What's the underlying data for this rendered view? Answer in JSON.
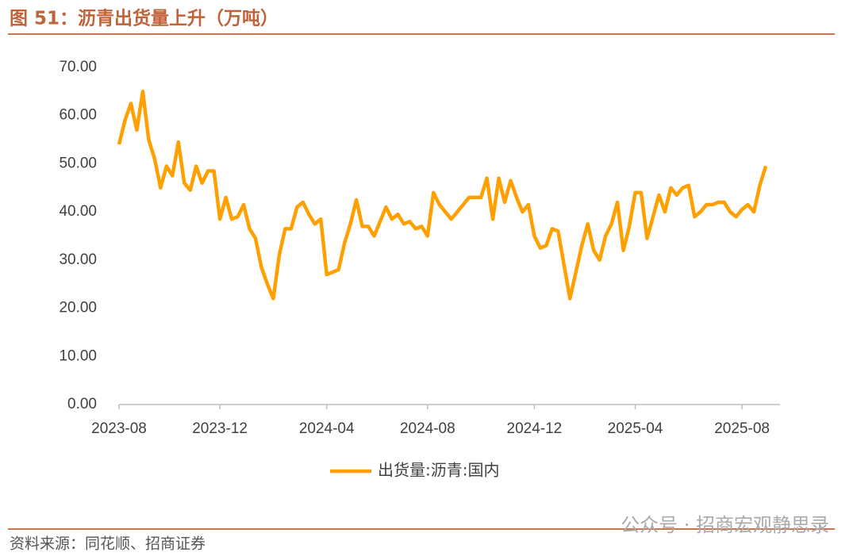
{
  "chart_data": {
    "type": "line",
    "title": "图 51：沥青出货量上升（万吨）",
    "source": "资料来源：同花顺、招商证券",
    "watermark": "公众号 · 招商宏观静思录",
    "categories": [
      "2023-08",
      null,
      null,
      null,
      null,
      null,
      null,
      null,
      null,
      null,
      null,
      null,
      null,
      null,
      null,
      null,
      null,
      "2023-12",
      null,
      null,
      null,
      null,
      null,
      null,
      null,
      null,
      null,
      null,
      null,
      null,
      null,
      null,
      null,
      null,
      null,
      "2024-04",
      null,
      null,
      null,
      null,
      null,
      null,
      null,
      null,
      null,
      null,
      null,
      null,
      null,
      null,
      null,
      null,
      "2024-08",
      null,
      null,
      null,
      null,
      null,
      null,
      null,
      null,
      null,
      null,
      null,
      null,
      null,
      null,
      null,
      null,
      null,
      "2024-12",
      null,
      null,
      null,
      null,
      null,
      null,
      null,
      null,
      null,
      null,
      null,
      null,
      null,
      null,
      null,
      null,
      "2025-04",
      null,
      null,
      null,
      null,
      null,
      null,
      null,
      null,
      null,
      null,
      null,
      null,
      null,
      null,
      null,
      null,
      null,
      "2025-08",
      null,
      null,
      null,
      null
    ],
    "series": [
      {
        "name": "出货量:沥青:国内",
        "color": "#ffa000",
        "values": [
          54,
          59,
          62.5,
          57,
          65,
          55,
          51,
          45,
          49.5,
          47.5,
          54.5,
          46,
          44.5,
          49.5,
          46,
          48.5,
          48.5,
          38.5,
          43,
          38.5,
          39,
          41.5,
          36.5,
          34.5,
          28.5,
          25,
          22,
          31,
          36.5,
          36.5,
          41,
          42,
          39.5,
          37.5,
          38.5,
          27,
          27.5,
          28,
          33.5,
          37.5,
          42.5,
          37,
          37,
          35,
          38,
          41,
          38.5,
          39.5,
          37.5,
          38,
          36.5,
          37,
          35,
          44,
          41.5,
          40,
          38.5,
          40,
          41.5,
          43,
          43,
          43,
          47,
          38.5,
          47,
          42,
          46.5,
          43,
          40,
          41.5,
          35,
          32.5,
          33,
          36.5,
          36,
          29,
          22,
          27.5,
          33,
          37.5,
          32,
          30,
          35,
          37.5,
          42,
          32,
          37,
          44,
          44,
          34.5,
          39,
          43.5,
          40,
          45,
          43.5,
          45,
          45.5,
          39,
          40,
          41.5,
          41.5,
          42,
          42,
          40,
          39,
          40.5,
          41.5,
          40,
          45.5,
          49.5
        ]
      }
    ],
    "ylim": [
      0,
      70
    ],
    "yticks": [
      {
        "value": 0,
        "label": "0.00"
      },
      {
        "value": 10,
        "label": "10.00"
      },
      {
        "value": 20,
        "label": "20.00"
      },
      {
        "value": 30,
        "label": "30.00"
      },
      {
        "value": 40,
        "label": "40.00"
      },
      {
        "value": 50,
        "label": "50.00"
      },
      {
        "value": 60,
        "label": "60.00"
      },
      {
        "value": 70,
        "label": "70.00"
      }
    ],
    "grid": false,
    "legend": "bottom"
  }
}
